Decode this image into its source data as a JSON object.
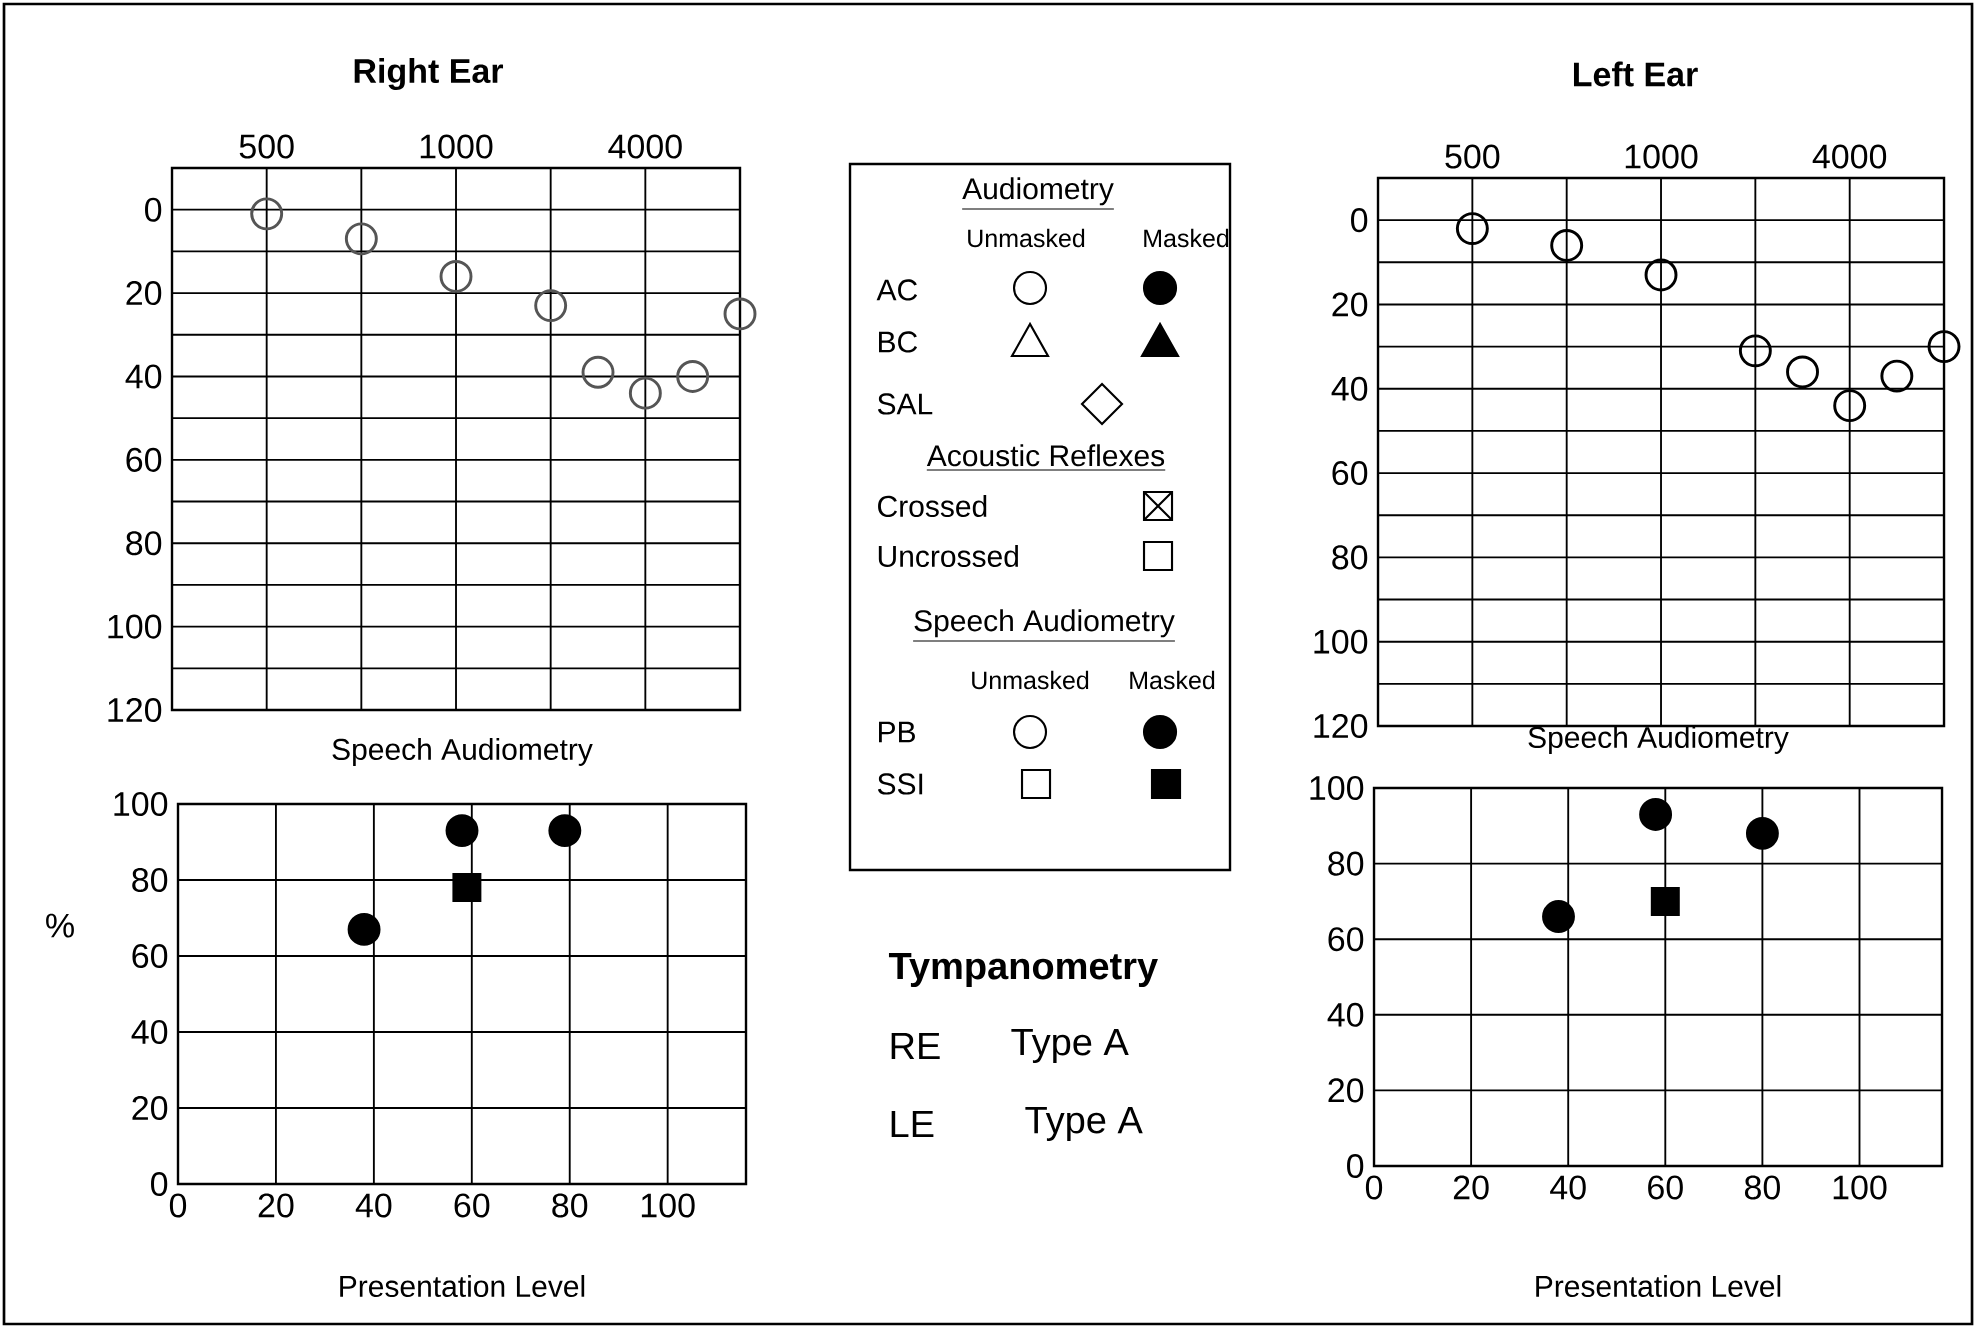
{
  "chart_data": [
    {
      "type": "scatter",
      "title": "Right Ear",
      "ylim": [
        120,
        -10
      ],
      "categories": [
        null,
        null,
        "500",
        null,
        null,
        null,
        "1000",
        null,
        null,
        null,
        "4000",
        null,
        null
      ],
      "yticks": [
        0,
        {
          "value": 10,
          "label": null
        },
        20,
        {
          "value": 30,
          "label": null
        },
        40,
        {
          "value": 50,
          "label": null
        },
        60,
        {
          "value": 70,
          "label": null
        },
        80,
        {
          "value": 90,
          "label": null
        },
        100,
        {
          "value": 110,
          "label": null
        },
        120
      ],
      "grid": true,
      "marker": "circle",
      "series": [
        {
          "color": "#555555",
          "values": [
            null,
            null,
            1,
            null,
            7,
            null,
            16,
            null,
            23,
            39,
            44,
            40,
            25
          ]
        }
      ]
    },
    {
      "type": "scatter",
      "title": "Speech Audiometry",
      "xlabel": "Presentation Level",
      "ylabel": "%",
      "xlim": [
        0,
        116
      ],
      "ylim": [
        0,
        100
      ],
      "xticks": [
        0,
        20,
        40,
        60,
        80,
        100
      ],
      "yticks": [
        0,
        20,
        40,
        60,
        80,
        100
      ],
      "grid": true,
      "series": [
        {
          "color": "#000000",
          "marker": "circle",
          "x": [
            38,
            58,
            79
          ],
          "values": [
            67,
            93,
            93
          ]
        },
        {
          "color": "#000000",
          "marker": "square",
          "x": [
            59
          ],
          "values": [
            78
          ]
        }
      ]
    },
    {
      "type": "other",
      "annotations": [
        "Audiometry",
        "Unmasked",
        "Masked",
        "AC",
        "BC",
        "SAL",
        "Acoustic Reflexes",
        "Crossed",
        "Uncrossed",
        "Speech Audiometry",
        "Unmasked",
        "Masked",
        "PB",
        "SSI"
      ]
    },
    {
      "type": "other",
      "title": "Tympanometry",
      "annotations": [
        "RE",
        "Type A",
        "LE",
        "Type A"
      ]
    },
    {
      "type": "scatter",
      "title": "Left Ear",
      "ylim": [
        120,
        -10
      ],
      "categories": [
        null,
        null,
        "500",
        null,
        null,
        null,
        "1000",
        null,
        null,
        null,
        "4000",
        null,
        null
      ],
      "yticks": [
        0,
        {
          "value": 10,
          "label": null
        },
        20,
        {
          "value": 30,
          "label": null
        },
        40,
        {
          "value": 50,
          "label": null
        },
        60,
        {
          "value": 70,
          "label": null
        },
        80,
        {
          "value": 90,
          "label": null
        },
        100,
        {
          "value": 110,
          "label": null
        },
        120
      ],
      "grid": true,
      "marker": "circle",
      "series": [
        {
          "color": "#000000",
          "values": [
            null,
            null,
            2,
            null,
            6,
            null,
            13,
            null,
            31,
            36,
            44,
            37,
            30
          ]
        }
      ]
    },
    {
      "type": "scatter",
      "title": "Speech Audiometry",
      "xlabel": "Presentation Level",
      "xlim": [
        0,
        117
      ],
      "ylim": [
        0,
        100
      ],
      "xticks": [
        0,
        20,
        40,
        60,
        80,
        100
      ],
      "yticks": [
        0,
        20,
        40,
        60,
        80,
        100
      ],
      "grid": true,
      "series": [
        {
          "color": "#000000",
          "marker": "circle",
          "x": [
            38,
            58,
            80
          ],
          "values": [
            66,
            93,
            88
          ]
        },
        {
          "color": "#000000",
          "marker": "square",
          "x": [
            60
          ],
          "values": [
            70
          ]
        }
      ]
    }
  ]
}
